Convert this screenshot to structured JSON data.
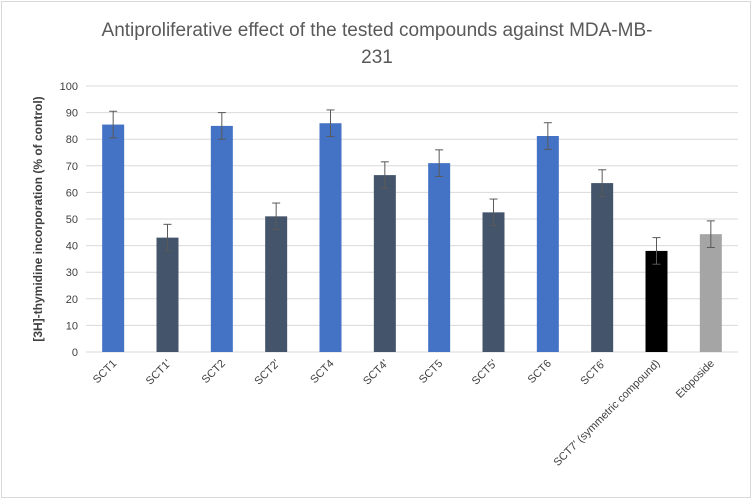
{
  "chart_data": {
    "type": "bar",
    "title_lines": [
      "Antiproliferative effect of the tested compounds  against MDA-MB-",
      "231"
    ],
    "ylabel": "[3H]-thymidine incorporation (% of control)",
    "xlabel": "",
    "ylim": [
      0,
      100
    ],
    "ytick_step": 10,
    "yticks": [
      "0",
      "10",
      "20",
      "30",
      "40",
      "50",
      "60",
      "70",
      "80",
      "90",
      "100"
    ],
    "grid": true,
    "categories": [
      "SCT1",
      "SCT1'",
      "SCT2",
      "SCT2'",
      "SCT4",
      "SCT4'",
      "SCT5",
      "SCT5'",
      "SCT6",
      "SCT6'",
      "SCT7' (symmetric compound)",
      "Etoposide"
    ],
    "values": [
      85.5,
      43,
      85,
      51,
      86,
      66.5,
      71,
      52.5,
      81.2,
      63.5,
      38,
      44.3
    ],
    "errors": [
      5,
      5,
      5,
      5,
      5,
      5,
      5,
      5,
      5,
      5,
      5,
      5
    ],
    "colors": [
      "#4472c4",
      "#44546a",
      "#4472c4",
      "#44546a",
      "#4472c4",
      "#44546a",
      "#4472c4",
      "#44546a",
      "#4472c4",
      "#44546a",
      "#000000",
      "#a5a5a5"
    ]
  }
}
